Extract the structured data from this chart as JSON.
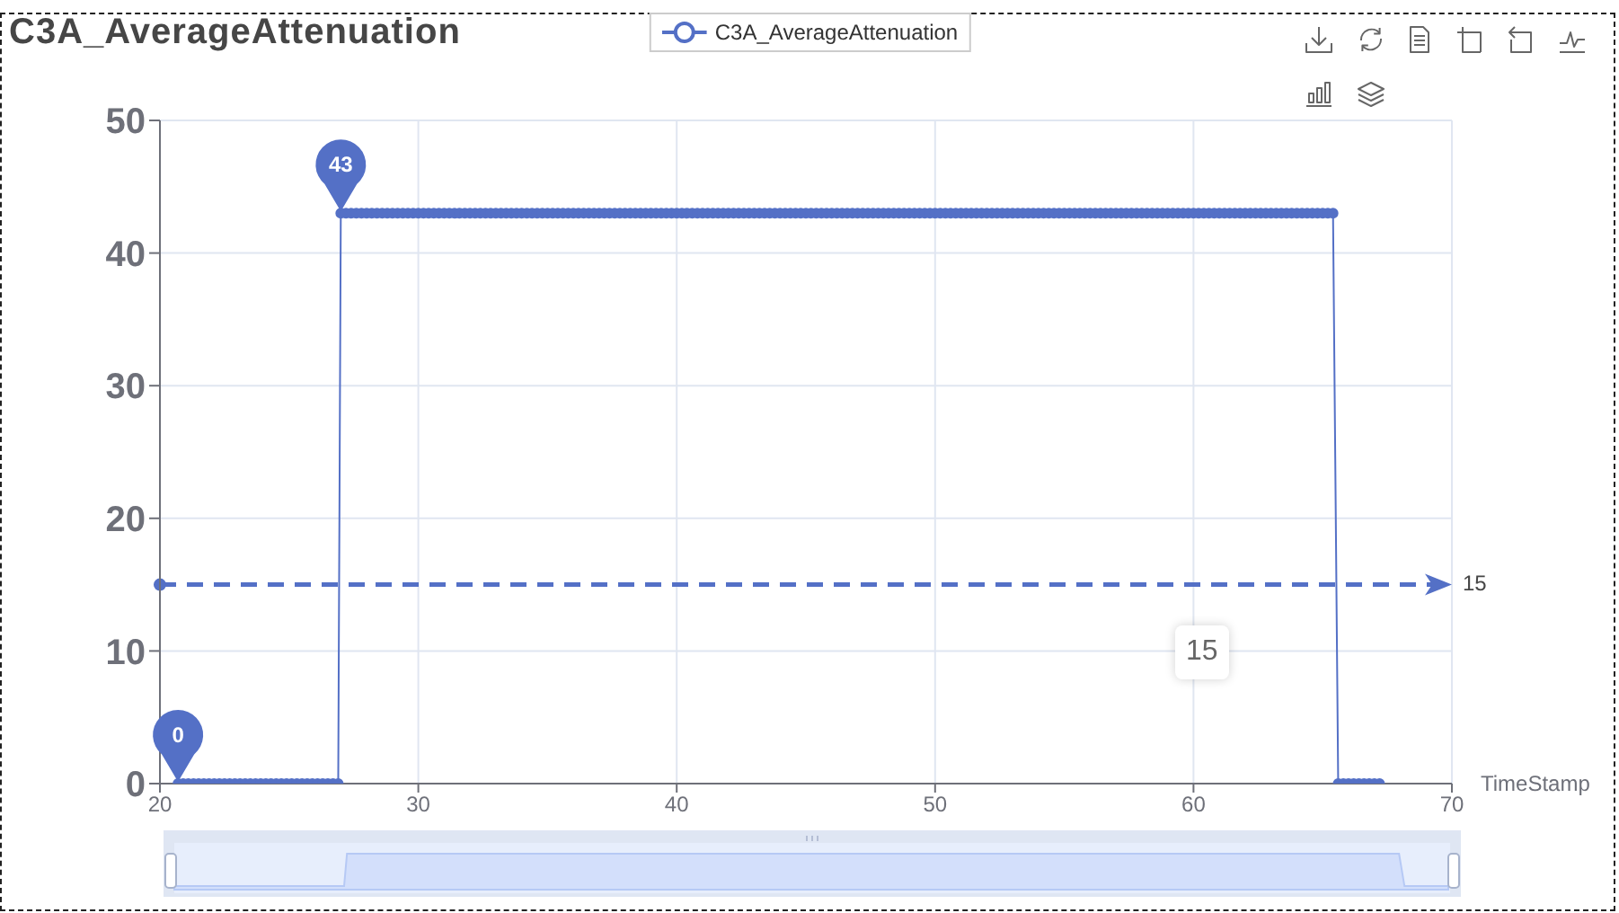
{
  "chart_data": {
    "type": "line",
    "title": "C3A_AverageAttenuation",
    "xlabel": "TimeStamp",
    "x": [
      20.7,
      20.9,
      21.1,
      21.3,
      21.5,
      21.7,
      21.9,
      22.1,
      22.3,
      22.5,
      22.7,
      22.9,
      23.1,
      23.3,
      23.5,
      23.7,
      23.9,
      24.1,
      24.3,
      24.5,
      24.7,
      24.9,
      25.1,
      25.3,
      25.5,
      25.7,
      25.9,
      26.1,
      26.3,
      26.5,
      26.7,
      26.9,
      27,
      27.2,
      27.4,
      27.6,
      27.8,
      28,
      28.2,
      28.4,
      28.6,
      28.8,
      29,
      29.2,
      29.4,
      29.6,
      29.8,
      30,
      30.2,
      30.4,
      30.6,
      30.8,
      31,
      31.2,
      31.4,
      31.6,
      31.8,
      32,
      32.2,
      32.4,
      32.6,
      32.8,
      33,
      33.2,
      33.4,
      33.6,
      33.8,
      34,
      34.2,
      34.4,
      34.6,
      34.8,
      35,
      35.2,
      35.4,
      35.6,
      35.8,
      36,
      36.2,
      36.4,
      36.6,
      36.8,
      37,
      37.2,
      37.4,
      37.6,
      37.8,
      38,
      38.2,
      38.4,
      38.6,
      38.8,
      39,
      39.2,
      39.4,
      39.6,
      39.8,
      40,
      40.2,
      40.4,
      40.6,
      40.8,
      41,
      41.2,
      41.4,
      41.6,
      41.8,
      42,
      42.2,
      42.4,
      42.6,
      42.8,
      43,
      43.2,
      43.4,
      43.6,
      43.8,
      44,
      44.2,
      44.4,
      44.6,
      44.8,
      45,
      45.2,
      45.4,
      45.6,
      45.8,
      46,
      46.2,
      46.4,
      46.6,
      46.8,
      47,
      47.2,
      47.4,
      47.6,
      47.8,
      48,
      48.2,
      48.4,
      48.6,
      48.8,
      49,
      49.2,
      49.4,
      49.6,
      49.8,
      50,
      50.2,
      50.4,
      50.6,
      50.8,
      51,
      51.2,
      51.4,
      51.6,
      51.8,
      52,
      52.2,
      52.4,
      52.6,
      52.8,
      53,
      53.2,
      53.4,
      53.6,
      53.8,
      54,
      54.2,
      54.4,
      54.6,
      54.8,
      55,
      55.2,
      55.4,
      55.6,
      55.8,
      56,
      56.2,
      56.4,
      56.6,
      56.8,
      57,
      57.2,
      57.4,
      57.6,
      57.8,
      58,
      58.2,
      58.4,
      58.6,
      58.8,
      59,
      59.2,
      59.4,
      59.6,
      59.8,
      60,
      60.2,
      60.4,
      60.6,
      60.8,
      61,
      61.2,
      61.4,
      61.6,
      61.8,
      62,
      62.2,
      62.4,
      62.6,
      62.8,
      63,
      63.2,
      63.4,
      63.6,
      63.8,
      64,
      64.2,
      64.4,
      64.6,
      64.8,
      65,
      65.2,
      65.4,
      65.6,
      65.8,
      66,
      66.2,
      66.4,
      66.6,
      66.8,
      67,
      67.2
    ],
    "series": [
      {
        "name": "C3A_AverageAttenuation",
        "color": "#5470c6",
        "values": [
          0,
          0,
          0,
          0,
          0,
          0,
          0,
          0,
          0,
          0,
          0,
          0,
          0,
          0,
          0,
          0,
          0,
          0,
          0,
          0,
          0,
          0,
          0,
          0,
          0,
          0,
          0,
          0,
          0,
          0,
          0,
          0,
          43,
          43,
          43,
          43,
          43,
          43,
          43,
          43,
          43,
          43,
          43,
          43,
          43,
          43,
          43,
          43,
          43,
          43,
          43,
          43,
          43,
          43,
          43,
          43,
          43,
          43,
          43,
          43,
          43,
          43,
          43,
          43,
          43,
          43,
          43,
          43,
          43,
          43,
          43,
          43,
          43,
          43,
          43,
          43,
          43,
          43,
          43,
          43,
          43,
          43,
          43,
          43,
          43,
          43,
          43,
          43,
          43,
          43,
          43,
          43,
          43,
          43,
          43,
          43,
          43,
          43,
          43,
          43,
          43,
          43,
          43,
          43,
          43,
          43,
          43,
          43,
          43,
          43,
          43,
          43,
          43,
          43,
          43,
          43,
          43,
          43,
          43,
          43,
          43,
          43,
          43,
          43,
          43,
          43,
          43,
          43,
          43,
          43,
          43,
          43,
          43,
          43,
          43,
          43,
          43,
          43,
          43,
          43,
          43,
          43,
          43,
          43,
          43,
          43,
          43,
          43,
          43,
          43,
          43,
          43,
          43,
          43,
          43,
          43,
          43,
          43,
          43,
          43,
          43,
          43,
          43,
          43,
          43,
          43,
          43,
          43,
          43,
          43,
          43,
          43,
          43,
          43,
          43,
          43,
          43,
          43,
          43,
          43,
          43,
          43,
          43,
          43,
          43,
          43,
          43,
          43,
          43,
          43,
          43,
          43,
          43,
          43,
          43,
          43,
          43,
          43,
          43,
          43,
          43,
          43,
          43,
          43,
          43,
          43,
          43,
          43,
          43,
          43,
          43,
          43,
          43,
          43,
          43,
          43,
          43,
          43,
          43,
          43,
          43,
          43,
          43,
          43,
          43,
          0,
          0,
          0,
          0,
          0,
          0,
          0,
          0,
          0
        ]
      }
    ],
    "xlim": [
      20,
      70
    ],
    "xticks": [
      20,
      30,
      40,
      50,
      60,
      70
    ],
    "ylim": [
      0,
      50
    ],
    "yticks": [
      0,
      10,
      20,
      30,
      40,
      50
    ],
    "grid": true,
    "legend": "top",
    "marker": "circle",
    "ref_lines": [
      {
        "axis": "y",
        "value": 15,
        "label": "15",
        "color": "#5470c6",
        "line_style": "dashed"
      }
    ],
    "annotations": [
      {
        "text": "43",
        "x": 27,
        "y": 43
      },
      {
        "text": "0",
        "x": 20.7,
        "y": 0
      },
      "15"
    ]
  }
}
